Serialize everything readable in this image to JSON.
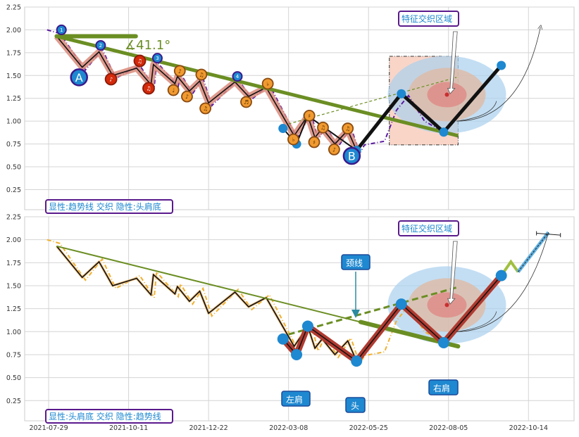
{
  "chart_data": [
    {
      "type": "line",
      "panel": "top",
      "ylim": [
        0.03,
        2.25
      ],
      "yticks": [
        "2.25",
        "2.00",
        "1.75",
        "1.50",
        "1.25",
        "1.00",
        "0.75",
        "0.50",
        "0.25"
      ],
      "ytick_values": [
        2.25,
        2.0,
        1.75,
        1.5,
        1.25,
        1.0,
        0.75,
        0.5,
        0.25
      ],
      "xlim": [
        -0.3,
        6.57
      ],
      "grid": true,
      "legend_box": "显性:趋势线 交织 隐性:头肩底",
      "angle_label": "∡41.1°",
      "zone_label": "特征交织区域",
      "big_markers": [
        {
          "label": "A",
          "x": 0.38,
          "y": 1.48
        },
        {
          "label": "B",
          "x": 3.79,
          "y": 0.62
        }
      ],
      "numbered_markers": [
        {
          "label": "1",
          "x": 0.16,
          "y": 2.0
        },
        {
          "label": "2",
          "x": 0.65,
          "y": 1.83
        },
        {
          "label": "3",
          "x": 1.36,
          "y": 1.69
        },
        {
          "label": "4",
          "x": 2.36,
          "y": 1.49
        }
      ],
      "note_markers_red": [
        {
          "glyph": "♪",
          "x": 0.78,
          "y": 1.46
        },
        {
          "glyph": "♫",
          "x": 1.14,
          "y": 1.66
        },
        {
          "glyph": "♫",
          "x": 1.25,
          "y": 1.36
        }
      ],
      "note_markers_orange": [
        {
          "glyph": "♪",
          "x": 1.64,
          "y": 1.55
        },
        {
          "glyph": "♩",
          "x": 1.56,
          "y": 1.34
        },
        {
          "glyph": "♪",
          "x": 1.73,
          "y": 1.27
        },
        {
          "glyph": "♫",
          "x": 1.91,
          "y": 1.51
        },
        {
          "glyph": "♫",
          "x": 1.96,
          "y": 1.14
        },
        {
          "glyph": "♬",
          "x": 2.47,
          "y": 1.21
        },
        {
          "glyph": "♭",
          "x": 2.74,
          "y": 1.41
        },
        {
          "glyph": "♭",
          "x": 3.06,
          "y": 0.8
        },
        {
          "glyph": "♯",
          "x": 3.26,
          "y": 1.06
        },
        {
          "glyph": "♯",
          "x": 3.32,
          "y": 0.77
        },
        {
          "glyph": "♫",
          "x": 3.43,
          "y": 0.93
        },
        {
          "glyph": "♪",
          "x": 3.57,
          "y": 0.69
        },
        {
          "glyph": "♫",
          "x": 3.74,
          "y": 0.92
        }
      ]
    },
    {
      "type": "line",
      "panel": "bottom",
      "ylim": [
        0.03,
        2.25
      ],
      "yticks": [
        "2.25",
        "2.00",
        "1.75",
        "1.50",
        "1.25",
        "1.00",
        "0.75",
        "0.50",
        "0.25"
      ],
      "ytick_values": [
        2.25,
        2.0,
        1.75,
        1.5,
        1.25,
        1.0,
        0.75,
        0.5,
        0.25
      ],
      "xlim": [
        -0.3,
        6.57
      ],
      "xticks": [
        "2021-07-29",
        "2021-10-11",
        "2021-12-22",
        "2022-03-08",
        "2022-05-25",
        "2022-08-05",
        "2022-10-14"
      ],
      "grid": true,
      "legend_box": "显性:头肩底 交织 隐性:趋势线",
      "zone_label": "特征交织区域",
      "neckline_label": "颈线",
      "left_shoulder_label": "左肩",
      "head_label": "头",
      "right_shoulder_label": "右肩",
      "extension": {
        "x": [
          5.66,
          5.78,
          5.87,
          6.25
        ],
        "y": [
          1.61,
          1.76,
          1.65,
          2.08
        ]
      }
    }
  ],
  "series": {
    "zigzag": {
      "x": [
        0.1,
        0.42,
        0.63,
        0.8,
        1.1,
        1.28,
        1.31,
        1.58,
        1.61,
        1.76,
        1.89,
        2.0,
        2.33,
        2.5,
        2.72,
        3.07,
        3.24,
        3.33,
        3.42,
        3.58,
        3.74,
        3.85
      ],
      "y": [
        1.93,
        1.59,
        1.76,
        1.5,
        1.58,
        1.4,
        1.62,
        1.41,
        1.49,
        1.33,
        1.44,
        1.2,
        1.43,
        1.27,
        1.37,
        0.84,
        1.06,
        0.82,
        0.92,
        0.75,
        0.9,
        0.68
      ]
    },
    "head_shoulders": {
      "x": [
        2.93,
        3.1,
        3.24,
        3.85,
        4.41,
        4.94,
        5.66
      ],
      "y": [
        0.92,
        0.75,
        1.06,
        0.68,
        1.3,
        0.88,
        1.61
      ]
    },
    "trendline": {
      "x": [
        0.1,
        5.12
      ],
      "y": [
        1.93,
        0.84
      ]
    },
    "neckline": {
      "x": [
        3.0,
        5.1
      ],
      "y": [
        0.97,
        1.48
      ]
    },
    "zone_center": {
      "x": 4.98,
      "y": 1.29
    },
    "zone_rect": {
      "x": [
        4.26,
        5.12
      ],
      "y": [
        0.74,
        1.71
      ]
    }
  },
  "colors": {
    "trend": "#6b8e23",
    "black": "#111111",
    "blue": "#1e88d0",
    "border": "#5a1a8c",
    "red_note": "#d42a0a",
    "orange_note": "#f09a30",
    "salmon": "#d98a7a",
    "hs_red": "#b03a30",
    "purple_dash": "#5a1aa0",
    "yellow_dash": "#f0b030"
  }
}
